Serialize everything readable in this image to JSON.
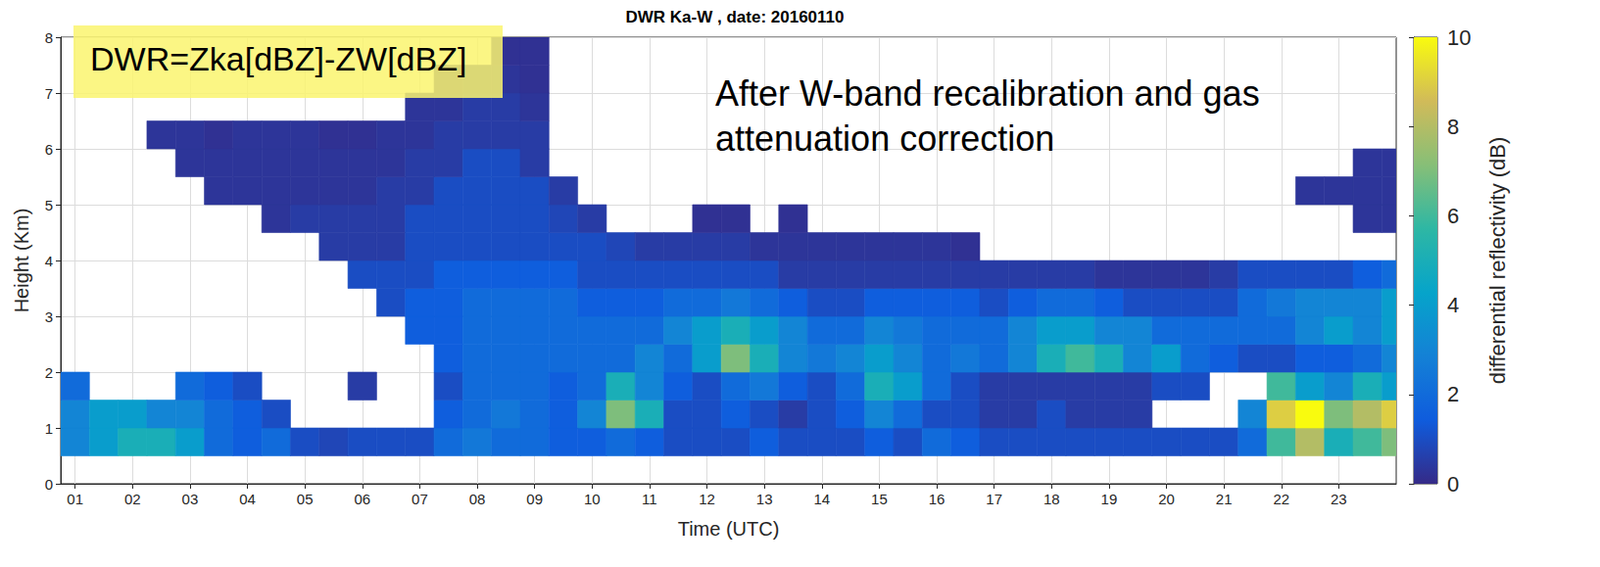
{
  "chart_data": {
    "type": "heatmap",
    "title": "DWR Ka-W , date: 20160110",
    "x_label": "Time (UTC)",
    "y_label": "Height (Km)",
    "annotations": [
      "DWR=Zka[dBZ]-ZW[dBZ]",
      "After W-band recalibration and gas attenuation correction"
    ],
    "xlim": [
      0.75,
      24
    ],
    "xticks": [
      {
        "value": 1,
        "label": "01"
      },
      {
        "value": 2,
        "label": "02"
      },
      {
        "value": 3,
        "label": "03"
      },
      {
        "value": 4,
        "label": "04"
      },
      {
        "value": 5,
        "label": "05"
      },
      {
        "value": 6,
        "label": "06"
      },
      {
        "value": 7,
        "label": "07"
      },
      {
        "value": 8,
        "label": "08"
      },
      {
        "value": 9,
        "label": "09"
      },
      {
        "value": 10,
        "label": "10"
      },
      {
        "value": 11,
        "label": "11"
      },
      {
        "value": 12,
        "label": "12"
      },
      {
        "value": 13,
        "label": "13"
      },
      {
        "value": 14,
        "label": "14"
      },
      {
        "value": 15,
        "label": "15"
      },
      {
        "value": 16,
        "label": "16"
      },
      {
        "value": 17,
        "label": "17"
      },
      {
        "value": 18,
        "label": "18"
      },
      {
        "value": 19,
        "label": "19"
      },
      {
        "value": 20,
        "label": "20"
      },
      {
        "value": 21,
        "label": "21"
      },
      {
        "value": 22,
        "label": "22"
      },
      {
        "value": 23,
        "label": "23"
      }
    ],
    "ylim": [
      0,
      8
    ],
    "yticks": [
      0,
      1,
      2,
      3,
      4,
      5,
      6,
      7,
      8
    ],
    "grid": true,
    "x_edges": [
      0.75,
      1.25,
      1.75,
      2.25,
      2.75,
      3.25,
      3.75,
      4.25,
      4.75,
      5.25,
      5.75,
      6.25,
      6.75,
      7.25,
      7.75,
      8.25,
      8.75,
      9.25,
      9.75,
      10.25,
      10.75,
      11.25,
      11.75,
      12.25,
      12.75,
      13.25,
      13.75,
      14.25,
      14.75,
      15.25,
      15.75,
      16.25,
      16.75,
      17.25,
      17.75,
      18.25,
      18.75,
      19.25,
      19.75,
      20.25,
      20.75,
      21.25,
      21.75,
      22.25,
      22.75,
      23.25,
      23.75,
      24.25
    ],
    "y_edges": [
      0.5,
      1,
      1.5,
      2,
      2.5,
      3,
      3.5,
      4,
      4.5,
      5,
      5.5,
      6,
      6.5,
      7,
      7.5,
      8
    ],
    "values": [
      [
        3,
        4,
        5,
        5,
        4,
        2,
        1.5,
        2,
        1,
        0.8,
        1,
        1,
        1,
        2,
        2.5,
        2,
        2,
        1.5,
        1.5,
        2,
        1.5,
        1,
        1,
        1,
        1.5,
        1,
        1,
        1,
        1.5,
        1,
        2,
        1.5,
        1,
        1,
        1,
        1,
        1,
        1,
        1,
        1,
        1,
        2,
        6,
        8,
        5,
        6,
        7
      ],
      [
        3,
        4,
        4,
        3,
        3,
        2,
        1.5,
        1,
        null,
        null,
        null,
        null,
        null,
        1.5,
        2,
        2.5,
        2,
        1.5,
        3,
        7,
        5,
        1,
        1,
        1.5,
        1,
        0.5,
        1,
        1.5,
        3,
        2,
        1,
        1,
        0.5,
        0.5,
        1,
        0.5,
        0.5,
        0.5,
        null,
        null,
        null,
        3,
        9,
        10,
        7,
        8,
        9
      ],
      [
        2,
        null,
        null,
        null,
        2,
        1.5,
        1,
        null,
        null,
        null,
        0.5,
        null,
        null,
        1,
        2,
        2,
        2,
        1.5,
        2,
        5,
        3,
        1.5,
        1,
        2,
        2.5,
        1.5,
        1,
        2,
        5,
        4,
        2,
        1,
        0.5,
        0.5,
        0.5,
        0.5,
        0.5,
        0.5,
        1,
        1,
        null,
        null,
        6,
        4,
        3,
        5,
        4
      ],
      [
        null,
        null,
        null,
        null,
        null,
        null,
        null,
        null,
        null,
        null,
        null,
        null,
        null,
        1.5,
        2,
        2,
        2,
        2,
        2,
        2,
        3,
        2,
        4,
        7,
        5,
        3,
        2.5,
        3,
        4,
        3,
        2,
        2.5,
        2,
        3,
        5,
        6,
        5,
        3,
        4,
        2,
        1.5,
        1,
        1,
        1.5,
        1.5,
        2,
        3
      ],
      [
        null,
        null,
        null,
        null,
        null,
        null,
        null,
        null,
        null,
        null,
        null,
        null,
        1.5,
        1.5,
        2,
        2,
        2,
        2,
        2,
        2,
        2,
        3,
        4,
        5,
        4,
        3,
        2,
        2,
        3,
        2.5,
        2,
        2,
        2,
        3,
        4,
        4,
        3,
        3,
        2,
        2,
        2,
        2,
        2,
        3,
        4,
        3,
        4
      ],
      [
        null,
        null,
        null,
        null,
        null,
        null,
        null,
        null,
        null,
        null,
        null,
        1,
        1.5,
        1.5,
        2,
        2,
        2,
        2,
        1.5,
        1.5,
        1.5,
        2,
        2,
        2.5,
        2,
        1.5,
        1,
        1,
        1.5,
        1.5,
        1.5,
        1.5,
        1,
        1.5,
        2,
        2,
        1.5,
        1,
        1,
        1,
        1,
        2,
        2.5,
        3,
        3,
        3,
        4
      ],
      [
        null,
        null,
        null,
        null,
        null,
        null,
        null,
        null,
        null,
        null,
        1,
        1,
        1,
        1.5,
        1.5,
        1.5,
        1.5,
        1.5,
        1,
        1,
        1,
        1,
        1,
        1,
        1,
        0.5,
        0.5,
        0.5,
        0.5,
        0.5,
        0.5,
        0.5,
        0.5,
        0.5,
        0.5,
        0.5,
        0.3,
        0.3,
        0.3,
        0.3,
        0.5,
        1,
        1,
        1,
        1,
        1.5,
        2
      ],
      [
        null,
        null,
        null,
        null,
        null,
        null,
        null,
        null,
        null,
        0.5,
        0.5,
        0.5,
        1,
        1,
        1,
        1,
        1,
        1,
        1,
        0.8,
        0.5,
        0.5,
        0.5,
        0.5,
        0.3,
        0.3,
        0.3,
        0.3,
        0.3,
        0.3,
        0.3,
        0.2,
        null,
        null,
        null,
        null,
        null,
        null,
        null,
        null,
        null,
        null,
        null,
        null,
        null,
        null,
        null
      ],
      [
        null,
        null,
        null,
        null,
        null,
        null,
        null,
        0.3,
        0.5,
        0.5,
        0.5,
        0.5,
        1,
        1,
        1,
        1,
        1,
        0.8,
        0.5,
        null,
        null,
        null,
        0.2,
        0.2,
        null,
        0.2,
        null,
        null,
        null,
        null,
        null,
        null,
        null,
        null,
        null,
        null,
        null,
        null,
        null,
        null,
        null,
        null,
        null,
        null,
        null,
        0.3,
        0.3
      ],
      [
        null,
        null,
        null,
        null,
        null,
        0.3,
        0.3,
        0.3,
        0.3,
        0.3,
        0.3,
        0.5,
        0.5,
        1,
        1,
        1,
        1,
        0.5,
        null,
        null,
        null,
        null,
        null,
        null,
        null,
        null,
        null,
        null,
        null,
        null,
        null,
        null,
        null,
        null,
        null,
        null,
        null,
        null,
        null,
        null,
        null,
        null,
        null,
        0.3,
        0.3,
        0.3,
        0.3
      ],
      [
        null,
        null,
        null,
        null,
        0.3,
        0.3,
        0.3,
        0.3,
        0.3,
        0.3,
        0.3,
        0.3,
        0.5,
        0.5,
        1,
        1,
        0.5,
        null,
        null,
        null,
        null,
        null,
        null,
        null,
        null,
        null,
        null,
        null,
        null,
        null,
        null,
        null,
        null,
        null,
        null,
        null,
        null,
        null,
        null,
        null,
        null,
        null,
        null,
        null,
        null,
        0.3,
        0.3
      ],
      [
        null,
        null,
        null,
        0.3,
        0.3,
        0.2,
        0.3,
        0.3,
        0.3,
        0.2,
        0.2,
        0.3,
        0.3,
        0.5,
        0.5,
        0.5,
        0.5,
        null,
        null,
        null,
        null,
        null,
        null,
        null,
        null,
        null,
        null,
        null,
        null,
        null,
        null,
        null,
        null,
        null,
        null,
        null,
        null,
        null,
        null,
        null,
        null,
        null,
        null,
        null,
        null,
        null,
        null
      ],
      [
        null,
        null,
        null,
        null,
        null,
        null,
        null,
        null,
        null,
        null,
        null,
        null,
        0.3,
        0.3,
        0.5,
        0.5,
        0.3,
        null,
        null,
        null,
        null,
        null,
        null,
        null,
        null,
        null,
        null,
        null,
        null,
        null,
        null,
        null,
        null,
        null,
        null,
        null,
        null,
        null,
        null,
        null,
        null,
        null,
        null,
        null,
        null,
        null,
        null
      ],
      [
        null,
        null,
        null,
        null,
        null,
        null,
        null,
        null,
        null,
        null,
        null,
        null,
        null,
        0.2,
        0.3,
        0.3,
        0.2,
        null,
        null,
        null,
        null,
        null,
        null,
        null,
        null,
        null,
        null,
        null,
        null,
        null,
        null,
        null,
        null,
        null,
        null,
        null,
        null,
        null,
        null,
        null,
        null,
        null,
        null,
        null,
        null,
        null,
        null
      ],
      [
        null,
        null,
        null,
        null,
        null,
        null,
        null,
        null,
        null,
        null,
        null,
        null,
        null,
        null,
        null,
        0.2,
        0.2,
        null,
        null,
        null,
        null,
        null,
        null,
        null,
        null,
        null,
        null,
        null,
        null,
        null,
        null,
        null,
        null,
        null,
        null,
        null,
        null,
        null,
        null,
        null,
        null,
        null,
        null,
        null,
        null,
        null,
        null
      ]
    ],
    "colorbar": {
      "label": "differential reflectivity (dB)",
      "range": [
        0,
        10
      ],
      "ticks": [
        0,
        2,
        4,
        6,
        8,
        10
      ]
    }
  }
}
